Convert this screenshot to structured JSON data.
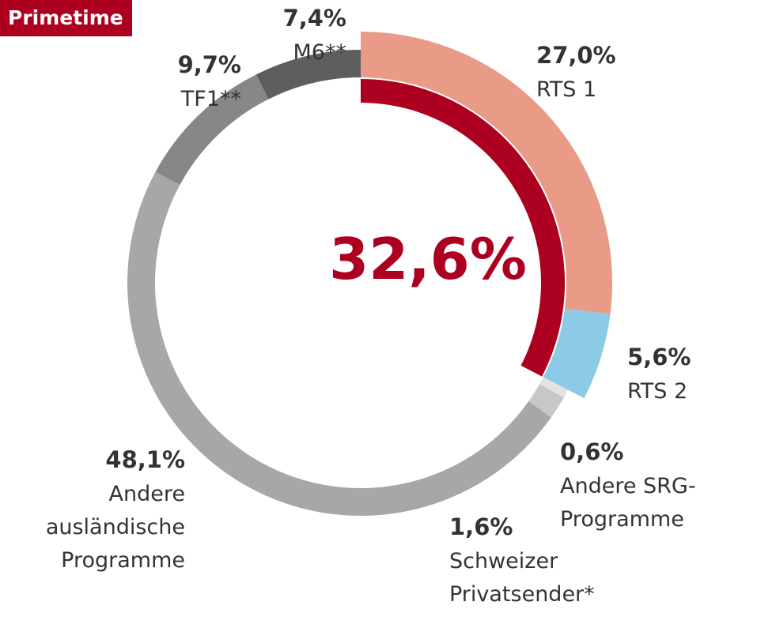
{
  "badge": "Primetime",
  "chart_data": {
    "type": "pie",
    "subtitle": "Primetime",
    "total_label": "32,6%",
    "total_value": 32.6,
    "total_color": "#ad0020",
    "slices": [
      {
        "pct": "27,0%",
        "value": 27.0,
        "label_lines": [
          "RTS 1"
        ],
        "color": "#e99b88",
        "anchor": "start"
      },
      {
        "pct": "5,6%",
        "value": 5.6,
        "label_lines": [
          "RTS 2"
        ],
        "color": "#8dcae6",
        "anchor": "start"
      },
      {
        "pct": "0,6%",
        "value": 0.6,
        "label_lines": [
          "Andere SRG-",
          "Programme"
        ],
        "color": "#e2e2e2",
        "anchor": "start"
      },
      {
        "pct": "1,6%",
        "value": 1.6,
        "label_lines": [
          "Schweizer",
          "Privatsender*"
        ],
        "color": "#c7c7c7",
        "anchor": "start"
      },
      {
        "pct": "48,1%",
        "value": 48.1,
        "label_lines": [
          "Andere",
          "ausländische",
          "Programme"
        ],
        "color": "#a6a7a6",
        "anchor": "end"
      },
      {
        "pct": "9,7%",
        "value": 9.7,
        "label_lines": [
          "TF1**"
        ],
        "color": "#878787",
        "anchor": "end"
      },
      {
        "pct": "7,4%",
        "value": 7.4,
        "label_lines": [
          "M6**"
        ],
        "color": "#5e5e5e",
        "anchor": "end"
      }
    ]
  }
}
